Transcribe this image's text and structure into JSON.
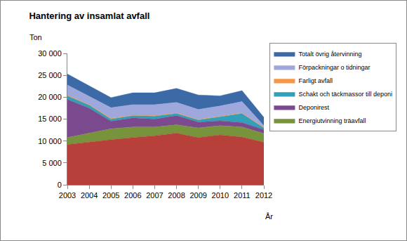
{
  "chart_data": {
    "type": "area",
    "stacked": true,
    "title": "Hantering av insamlat avfall",
    "y_label": "Ton",
    "x_label": "År",
    "categories": [
      "2003",
      "2004",
      "2005",
      "2006",
      "2007",
      "2008",
      "2009",
      "2010",
      "2011",
      "2012"
    ],
    "ylim": [
      0,
      30000
    ],
    "yticks": [
      0,
      {
        "value": 5000,
        "label": "5 000"
      },
      {
        "value": 10000,
        "label": "10 000"
      },
      {
        "value": 15000,
        "label": "15 000"
      },
      {
        "value": 20000,
        "label": "20 000"
      },
      {
        "value": 25000,
        "label": "25 000"
      },
      {
        "value": 30000,
        "label": "30 000"
      }
    ],
    "grid": false,
    "legend": "right",
    "series": [
      {
        "color": "#b7413a",
        "values": [
          9200,
          9800,
          10300,
          10800,
          11200,
          11800,
          10800,
          11400,
          10900,
          9700
        ]
      },
      {
        "name": "Energiutvinning träavfall",
        "color": "#77933c",
        "values": [
          1600,
          2000,
          2500,
          2400,
          2000,
          1900,
          2200,
          2100,
          2300,
          2000
        ]
      },
      {
        "name": "Deponirest",
        "color": "#7b4a8e",
        "values": [
          8700,
          5700,
          1700,
          2100,
          1800,
          2100,
          1300,
          1100,
          1000,
          900
        ]
      },
      {
        "name": "Schakt och täckmassor till deponi",
        "color": "#31a0b8",
        "values": [
          800,
          700,
          500,
          500,
          700,
          500,
          500,
          900,
          2100,
          400
        ]
      },
      {
        "name": "Farligt avfall",
        "color": "#f79646",
        "values": [
          200,
          100,
          200,
          100,
          100,
          100,
          100,
          100,
          100,
          100
        ]
      },
      {
        "name": "Förpackningar o tidningar",
        "color": "#9fa8dc",
        "values": [
          2300,
          1900,
          2400,
          2400,
          2500,
          2400,
          2300,
          2400,
          2600,
          400
        ]
      },
      {
        "name": "Totalt övrig återvinning",
        "color": "#3c6aa6",
        "values": [
          2500,
          2400,
          2300,
          2700,
          2700,
          3200,
          3300,
          2300,
          2500,
          1900
        ]
      }
    ]
  }
}
